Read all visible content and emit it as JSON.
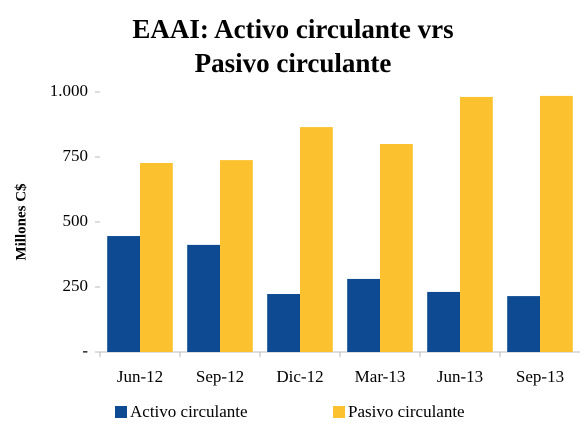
{
  "chart_data": {
    "type": "bar",
    "title": "EAAI: Activo circulante vrs Pasivo circulante",
    "y_label": "Millones C$",
    "categories": [
      "Jun-12",
      "Sep-12",
      "Dic-12",
      "Mar-13",
      "Jun-13",
      "Sep-13"
    ],
    "series": [
      {
        "name": "Activo circulante",
        "color": "#0d4a92",
        "values": [
          446,
          412,
          223,
          281,
          231,
          215
        ]
      },
      {
        "name": "Pasivo circulante",
        "color": "#fbc12e",
        "values": [
          727,
          738,
          865,
          800,
          981,
          985
        ]
      }
    ],
    "ylim": [
      0,
      1000
    ],
    "yticks": [
      {
        "value": 0,
        "label": "-"
      },
      250,
      500,
      750,
      {
        "value": 1000,
        "label": "1.000"
      }
    ],
    "legend": "bottom"
  }
}
